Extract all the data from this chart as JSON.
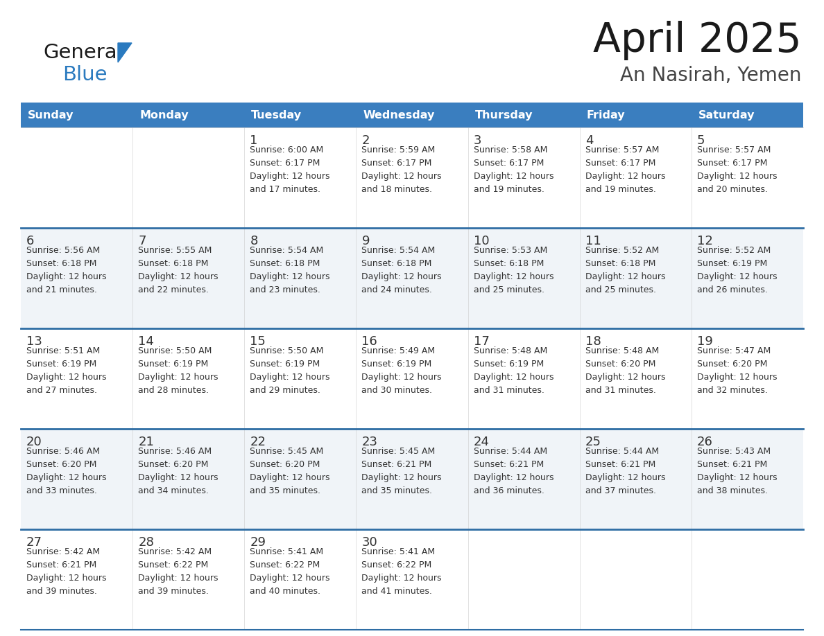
{
  "title": "April 2025",
  "subtitle": "An Nasirah, Yemen",
  "header_color": "#3a7ebf",
  "header_text_color": "#ffffff",
  "cell_bg_white": "#ffffff",
  "cell_bg_gray": "#f0f4f8",
  "border_color": "#2e6da4",
  "text_color": "#333333",
  "days_of_week": [
    "Sunday",
    "Monday",
    "Tuesday",
    "Wednesday",
    "Thursday",
    "Friday",
    "Saturday"
  ],
  "calendar_data": [
    [
      {
        "day": "",
        "sunrise": "",
        "sunset": "",
        "daylight": ""
      },
      {
        "day": "",
        "sunrise": "",
        "sunset": "",
        "daylight": ""
      },
      {
        "day": "1",
        "sunrise": "6:00 AM",
        "sunset": "6:17 PM",
        "daylight": "and 17 minutes."
      },
      {
        "day": "2",
        "sunrise": "5:59 AM",
        "sunset": "6:17 PM",
        "daylight": "and 18 minutes."
      },
      {
        "day": "3",
        "sunrise": "5:58 AM",
        "sunset": "6:17 PM",
        "daylight": "and 19 minutes."
      },
      {
        "day": "4",
        "sunrise": "5:57 AM",
        "sunset": "6:17 PM",
        "daylight": "and 19 minutes."
      },
      {
        "day": "5",
        "sunrise": "5:57 AM",
        "sunset": "6:17 PM",
        "daylight": "and 20 minutes."
      }
    ],
    [
      {
        "day": "6",
        "sunrise": "5:56 AM",
        "sunset": "6:18 PM",
        "daylight": "and 21 minutes."
      },
      {
        "day": "7",
        "sunrise": "5:55 AM",
        "sunset": "6:18 PM",
        "daylight": "and 22 minutes."
      },
      {
        "day": "8",
        "sunrise": "5:54 AM",
        "sunset": "6:18 PM",
        "daylight": "and 23 minutes."
      },
      {
        "day": "9",
        "sunrise": "5:54 AM",
        "sunset": "6:18 PM",
        "daylight": "and 24 minutes."
      },
      {
        "day": "10",
        "sunrise": "5:53 AM",
        "sunset": "6:18 PM",
        "daylight": "and 25 minutes."
      },
      {
        "day": "11",
        "sunrise": "5:52 AM",
        "sunset": "6:18 PM",
        "daylight": "and 25 minutes."
      },
      {
        "day": "12",
        "sunrise": "5:52 AM",
        "sunset": "6:19 PM",
        "daylight": "and 26 minutes."
      }
    ],
    [
      {
        "day": "13",
        "sunrise": "5:51 AM",
        "sunset": "6:19 PM",
        "daylight": "and 27 minutes."
      },
      {
        "day": "14",
        "sunrise": "5:50 AM",
        "sunset": "6:19 PM",
        "daylight": "and 28 minutes."
      },
      {
        "day": "15",
        "sunrise": "5:50 AM",
        "sunset": "6:19 PM",
        "daylight": "and 29 minutes."
      },
      {
        "day": "16",
        "sunrise": "5:49 AM",
        "sunset": "6:19 PM",
        "daylight": "and 30 minutes."
      },
      {
        "day": "17",
        "sunrise": "5:48 AM",
        "sunset": "6:19 PM",
        "daylight": "and 31 minutes."
      },
      {
        "day": "18",
        "sunrise": "5:48 AM",
        "sunset": "6:20 PM",
        "daylight": "and 31 minutes."
      },
      {
        "day": "19",
        "sunrise": "5:47 AM",
        "sunset": "6:20 PM",
        "daylight": "and 32 minutes."
      }
    ],
    [
      {
        "day": "20",
        "sunrise": "5:46 AM",
        "sunset": "6:20 PM",
        "daylight": "and 33 minutes."
      },
      {
        "day": "21",
        "sunrise": "5:46 AM",
        "sunset": "6:20 PM",
        "daylight": "and 34 minutes."
      },
      {
        "day": "22",
        "sunrise": "5:45 AM",
        "sunset": "6:20 PM",
        "daylight": "and 35 minutes."
      },
      {
        "day": "23",
        "sunrise": "5:45 AM",
        "sunset": "6:21 PM",
        "daylight": "and 35 minutes."
      },
      {
        "day": "24",
        "sunrise": "5:44 AM",
        "sunset": "6:21 PM",
        "daylight": "and 36 minutes."
      },
      {
        "day": "25",
        "sunrise": "5:44 AM",
        "sunset": "6:21 PM",
        "daylight": "and 37 minutes."
      },
      {
        "day": "26",
        "sunrise": "5:43 AM",
        "sunset": "6:21 PM",
        "daylight": "and 38 minutes."
      }
    ],
    [
      {
        "day": "27",
        "sunrise": "5:42 AM",
        "sunset": "6:21 PM",
        "daylight": "and 39 minutes."
      },
      {
        "day": "28",
        "sunrise": "5:42 AM",
        "sunset": "6:22 PM",
        "daylight": "and 39 minutes."
      },
      {
        "day": "29",
        "sunrise": "5:41 AM",
        "sunset": "6:22 PM",
        "daylight": "and 40 minutes."
      },
      {
        "day": "30",
        "sunrise": "5:41 AM",
        "sunset": "6:22 PM",
        "daylight": "and 41 minutes."
      },
      {
        "day": "",
        "sunrise": "",
        "sunset": "",
        "daylight": ""
      },
      {
        "day": "",
        "sunrise": "",
        "sunset": "",
        "daylight": ""
      },
      {
        "day": "",
        "sunrise": "",
        "sunset": "",
        "daylight": ""
      }
    ]
  ],
  "logo_general_color": "#1a1a1a",
  "logo_blue_color": "#2a7abf",
  "logo_triangle_color": "#2a7abf",
  "fig_width": 11.88,
  "fig_height": 9.18,
  "dpi": 100
}
